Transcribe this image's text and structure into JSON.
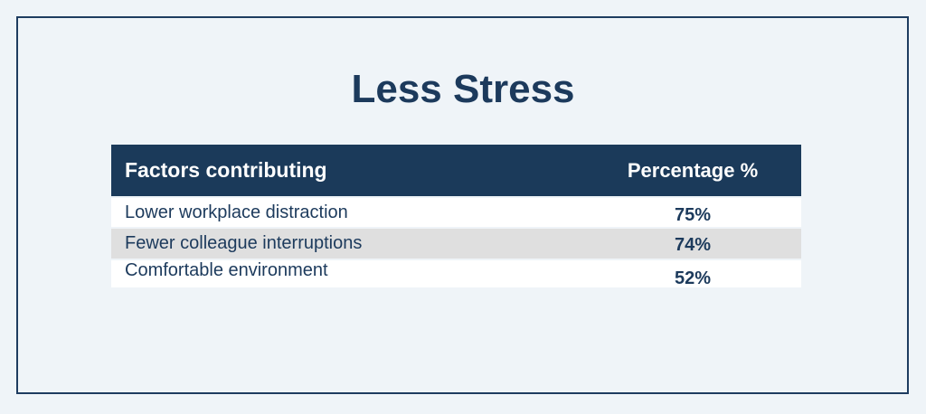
{
  "header": {
    "title": "Less Stress"
  },
  "table": {
    "columns": [
      "Factors contributing",
      "Percentage %"
    ],
    "rows": [
      [
        "Lower workplace distraction",
        "75%"
      ],
      [
        "Fewer colleague interruptions",
        "74%"
      ],
      [
        "Comfortable environment",
        "52%"
      ]
    ]
  }
}
